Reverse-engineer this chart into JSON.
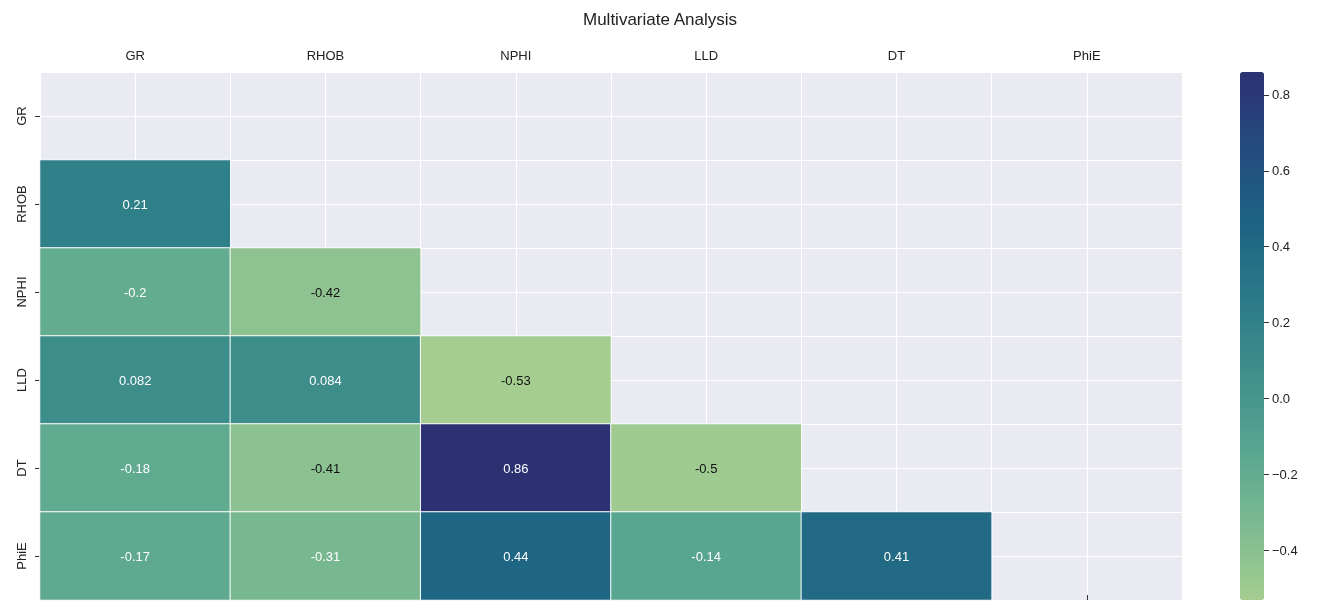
{
  "chart_data": {
    "type": "heatmap",
    "title": "Multivariate Analysis",
    "categories": [
      "GR",
      "RHOB",
      "NPHI",
      "LLD",
      "DT",
      "PhiE"
    ],
    "y_categories": [
      "GR",
      "RHOB",
      "NPHI",
      "LLD",
      "DT",
      "PhiE"
    ],
    "cells": [
      [
        null,
        null,
        null,
        null,
        null,
        null
      ],
      [
        0.21,
        null,
        null,
        null,
        null,
        null
      ],
      [
        -0.2,
        -0.42,
        null,
        null,
        null,
        null
      ],
      [
        0.082,
        0.084,
        -0.53,
        null,
        null,
        null
      ],
      [
        -0.18,
        -0.41,
        0.86,
        -0.5,
        null,
        null
      ],
      [
        -0.17,
        -0.31,
        0.44,
        -0.14,
        0.41,
        null
      ]
    ],
    "clim": [
      -0.53,
      0.86
    ],
    "cticks": [
      0.8,
      0.6,
      0.4,
      0.2,
      {
        "value": 0,
        "label": "0.0"
      },
      {
        "value": -0.2,
        "label": "−0.2"
      },
      {
        "value": -0.4,
        "label": "−0.4"
      }
    ],
    "data_labels": true,
    "grid": true
  }
}
